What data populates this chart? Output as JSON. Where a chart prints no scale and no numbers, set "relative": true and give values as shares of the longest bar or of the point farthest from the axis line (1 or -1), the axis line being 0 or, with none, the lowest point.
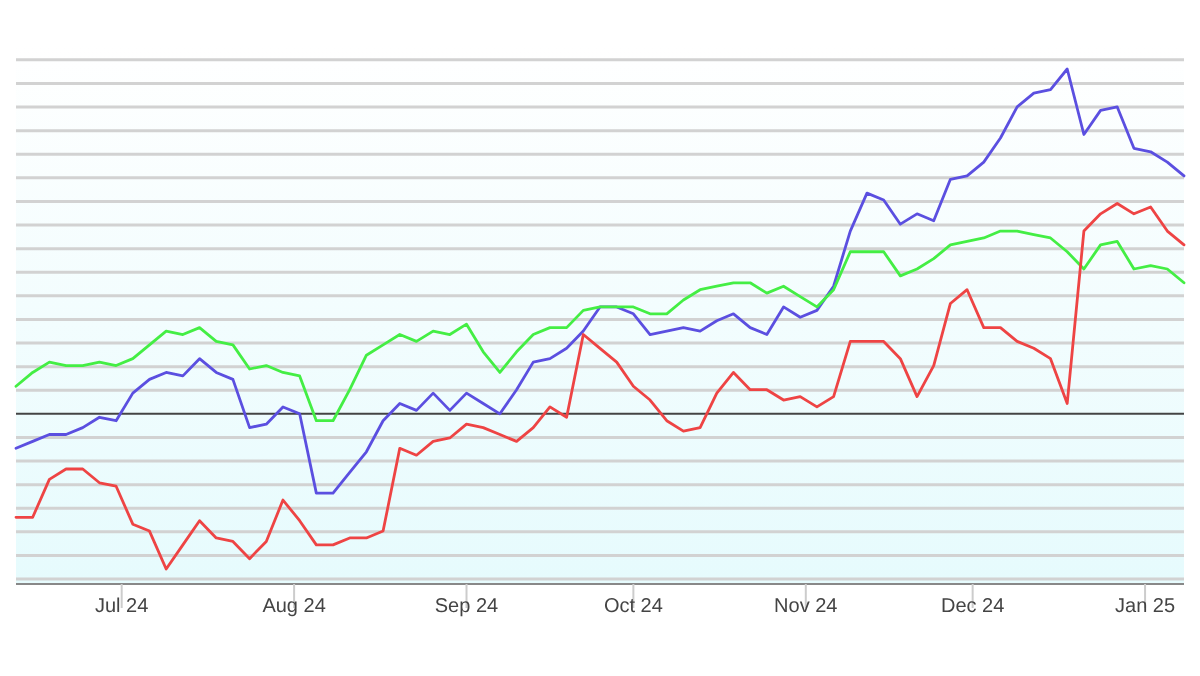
{
  "chart_data": {
    "type": "line",
    "relative": true,
    "grid": "y",
    "x": [
      "2024-06-12",
      "2024-06-15",
      "2024-06-18",
      "2024-06-21",
      "2024-06-24",
      "2024-06-27",
      "2024-06-30",
      "2024-07-03",
      "2024-07-06",
      "2024-07-09",
      "2024-07-12",
      "2024-07-15",
      "2024-07-18",
      "2024-07-21",
      "2024-07-24",
      "2024-07-27",
      "2024-07-30",
      "2024-08-02",
      "2024-08-05",
      "2024-08-08",
      "2024-08-11",
      "2024-08-14",
      "2024-08-17",
      "2024-08-20",
      "2024-08-23",
      "2024-08-26",
      "2024-08-29",
      "2024-09-01",
      "2024-09-04",
      "2024-09-07",
      "2024-09-10",
      "2024-09-13",
      "2024-09-16",
      "2024-09-19",
      "2024-09-22",
      "2024-09-25",
      "2024-09-28",
      "2024-10-01",
      "2024-10-04",
      "2024-10-07",
      "2024-10-10",
      "2024-10-13",
      "2024-10-16",
      "2024-10-19",
      "2024-10-22",
      "2024-10-25",
      "2024-10-28",
      "2024-10-31",
      "2024-11-03",
      "2024-11-06",
      "2024-11-09",
      "2024-11-12",
      "2024-11-15",
      "2024-11-18",
      "2024-11-21",
      "2024-11-24",
      "2024-11-27",
      "2024-11-30",
      "2024-12-03",
      "2024-12-06",
      "2024-12-09",
      "2024-12-12",
      "2024-12-15",
      "2024-12-18",
      "2024-12-21",
      "2024-12-24",
      "2024-12-27",
      "2024-12-30",
      "2025-01-02",
      "2025-01-05",
      "2025-01-08"
    ],
    "xlim": [
      "2024-06-12",
      "2025-01-08"
    ],
    "xticks": [
      {
        "value": "2024-07-01",
        "label": "Jul 24"
      },
      {
        "value": "2024-08-01",
        "label": "Aug 24"
      },
      {
        "value": "2024-09-01",
        "label": "Sep 24"
      },
      {
        "value": "2024-10-01",
        "label": "Oct 24"
      },
      {
        "value": "2024-11-01",
        "label": "Nov 24"
      },
      {
        "value": "2024-12-01",
        "label": "Dec 24"
      },
      {
        "value": "2025-01-01",
        "label": "Jan 25"
      }
    ],
    "series": [
      {
        "color": "#5b4fe0",
        "values": [
          -0.1,
          -0.08,
          -0.06,
          -0.06,
          -0.04,
          -0.01,
          -0.02,
          0.06,
          0.1,
          0.12,
          0.11,
          0.16,
          0.12,
          0.1,
          -0.04,
          -0.03,
          0.02,
          0.0,
          -0.23,
          -0.23,
          -0.17,
          -0.11,
          -0.02,
          0.03,
          0.01,
          0.06,
          0.01,
          0.06,
          0.03,
          0.0,
          0.07,
          0.15,
          0.16,
          0.19,
          0.24,
          0.31,
          0.31,
          0.29,
          0.23,
          0.24,
          0.25,
          0.24,
          0.27,
          0.29,
          0.25,
          0.23,
          0.31,
          0.28,
          0.3,
          0.37,
          0.53,
          0.64,
          0.62,
          0.55,
          0.58,
          0.56,
          0.68,
          0.69,
          0.73,
          0.8,
          0.89,
          0.93,
          0.94,
          1.0,
          0.81,
          0.88,
          0.89,
          0.77,
          0.76,
          0.73,
          0.69
        ]
      },
      {
        "color": "#44ee44",
        "values": [
          0.08,
          0.12,
          0.15,
          0.14,
          0.14,
          0.15,
          0.14,
          0.16,
          0.2,
          0.24,
          0.23,
          0.25,
          0.21,
          0.2,
          0.13,
          0.14,
          0.12,
          0.11,
          -0.02,
          -0.02,
          0.07,
          0.17,
          0.2,
          0.23,
          0.21,
          0.24,
          0.23,
          0.26,
          0.18,
          0.12,
          0.18,
          0.23,
          0.25,
          0.25,
          0.3,
          0.31,
          0.31,
          0.31,
          0.29,
          0.29,
          0.33,
          0.36,
          0.37,
          0.38,
          0.38,
          0.35,
          0.37,
          0.34,
          0.31,
          0.36,
          0.47,
          0.47,
          0.47,
          0.4,
          0.42,
          0.45,
          0.49,
          0.5,
          0.51,
          0.53,
          0.53,
          0.52,
          0.51,
          0.47,
          0.42,
          0.49,
          0.5,
          0.42,
          0.43,
          0.42,
          0.38
        ]
      },
      {
        "color": "#ee4444",
        "values": [
          -0.3,
          -0.3,
          -0.19,
          -0.16,
          -0.16,
          -0.2,
          -0.21,
          -0.32,
          -0.34,
          -0.45,
          -0.38,
          -0.31,
          -0.36,
          -0.37,
          -0.42,
          -0.37,
          -0.25,
          -0.31,
          -0.38,
          -0.38,
          -0.36,
          -0.36,
          -0.34,
          -0.1,
          -0.12,
          -0.08,
          -0.07,
          -0.03,
          -0.04,
          -0.06,
          -0.08,
          -0.04,
          0.02,
          -0.01,
          0.23,
          0.19,
          0.15,
          0.08,
          0.04,
          -0.02,
          -0.05,
          -0.04,
          0.06,
          0.12,
          0.07,
          0.07,
          0.04,
          0.05,
          0.02,
          0.05,
          0.21,
          0.21,
          0.21,
          0.16,
          0.05,
          0.14,
          0.32,
          0.36,
          0.25,
          0.25,
          0.21,
          0.19,
          0.16,
          0.03,
          0.53,
          0.58,
          0.61,
          0.58,
          0.6,
          0.53,
          0.49
        ]
      }
    ]
  }
}
